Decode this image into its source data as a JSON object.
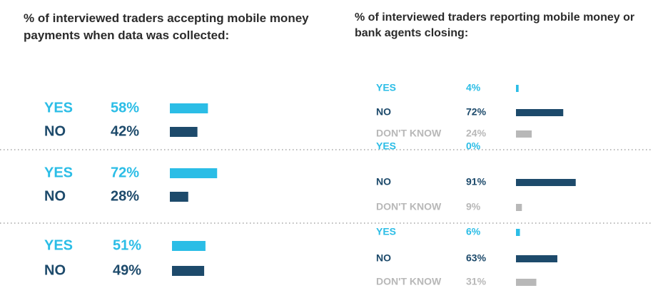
{
  "chart_data": [
    {
      "type": "bar",
      "title": "% of interviewed traders accepting mobile money payments when data was collected:",
      "colors": [
        "#2bbde6",
        "#1d4a6b"
      ],
      "groups": [
        {
          "categories": [
            "YES",
            "NO"
          ],
          "values": [
            58,
            42
          ],
          "value_labels": [
            "58%",
            "42%"
          ]
        },
        {
          "categories": [
            "YES",
            "NO"
          ],
          "values": [
            72,
            28
          ],
          "value_labels": [
            "72%",
            "28%"
          ]
        },
        {
          "categories": [
            "YES",
            "NO"
          ],
          "values": [
            51,
            49
          ],
          "value_labels": [
            "51%",
            "49%"
          ]
        }
      ]
    },
    {
      "type": "bar",
      "title": "% of interviewed traders reporting mobile money or bank agents closing:",
      "colors": [
        "#2bbde6",
        "#1d4a6b",
        "#b8b8b8"
      ],
      "groups": [
        {
          "categories": [
            "YES",
            "NO",
            "DON'T KNOW"
          ],
          "values": [
            4,
            72,
            24
          ],
          "value_labels": [
            "4%",
            "72%",
            "24%"
          ]
        },
        {
          "categories": [
            "YES",
            "NO",
            "DON'T KNOW"
          ],
          "values": [
            0,
            91,
            9
          ],
          "value_labels": [
            "0%",
            "91%",
            "9%"
          ]
        },
        {
          "categories": [
            "YES",
            "NO",
            "DON'T KNOW"
          ],
          "values": [
            6,
            63,
            31
          ],
          "value_labels": [
            "6%",
            "63%",
            "31%"
          ]
        }
      ]
    }
  ]
}
